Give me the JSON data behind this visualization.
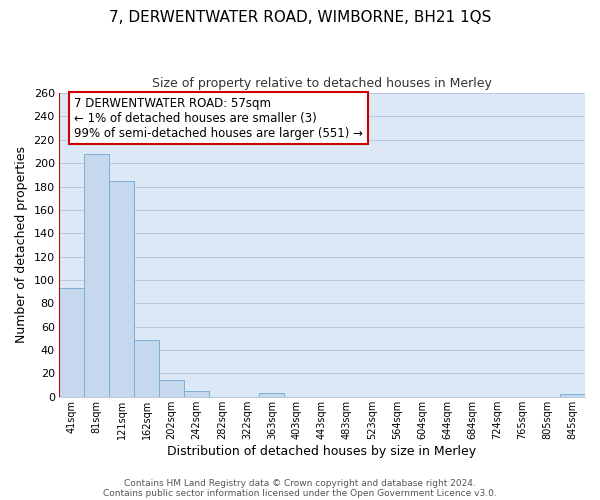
{
  "title": "7, DERWENTWATER ROAD, WIMBORNE, BH21 1QS",
  "subtitle": "Size of property relative to detached houses in Merley",
  "xlabel": "Distribution of detached houses by size in Merley",
  "ylabel": "Number of detached properties",
  "bin_labels": [
    "41sqm",
    "81sqm",
    "121sqm",
    "162sqm",
    "202sqm",
    "242sqm",
    "282sqm",
    "322sqm",
    "363sqm",
    "403sqm",
    "443sqm",
    "483sqm",
    "523sqm",
    "564sqm",
    "604sqm",
    "644sqm",
    "684sqm",
    "724sqm",
    "765sqm",
    "805sqm",
    "845sqm"
  ],
  "bin_values": [
    93,
    208,
    185,
    49,
    14,
    5,
    0,
    0,
    3,
    0,
    0,
    0,
    0,
    0,
    0,
    0,
    0,
    0,
    0,
    0,
    2
  ],
  "bar_color": "#c5d8ee",
  "bar_edge_color": "#7bafd4",
  "plot_bg_color": "#dce8f5",
  "fig_bg_color": "#ffffff",
  "grid_color": "#b8c8dc",
  "ylim": [
    0,
    260
  ],
  "yticks": [
    0,
    20,
    40,
    60,
    80,
    100,
    120,
    140,
    160,
    180,
    200,
    220,
    240,
    260
  ],
  "property_line_color": "#cc0000",
  "annotation_text": "7 DERWENTWATER ROAD: 57sqm\n← 1% of detached houses are smaller (3)\n99% of semi-detached houses are larger (551) →",
  "annotation_box_color": "#ffffff",
  "annotation_box_edge": "#cc0000",
  "footer1": "Contains HM Land Registry data © Crown copyright and database right 2024.",
  "footer2": "Contains public sector information licensed under the Open Government Licence v3.0."
}
